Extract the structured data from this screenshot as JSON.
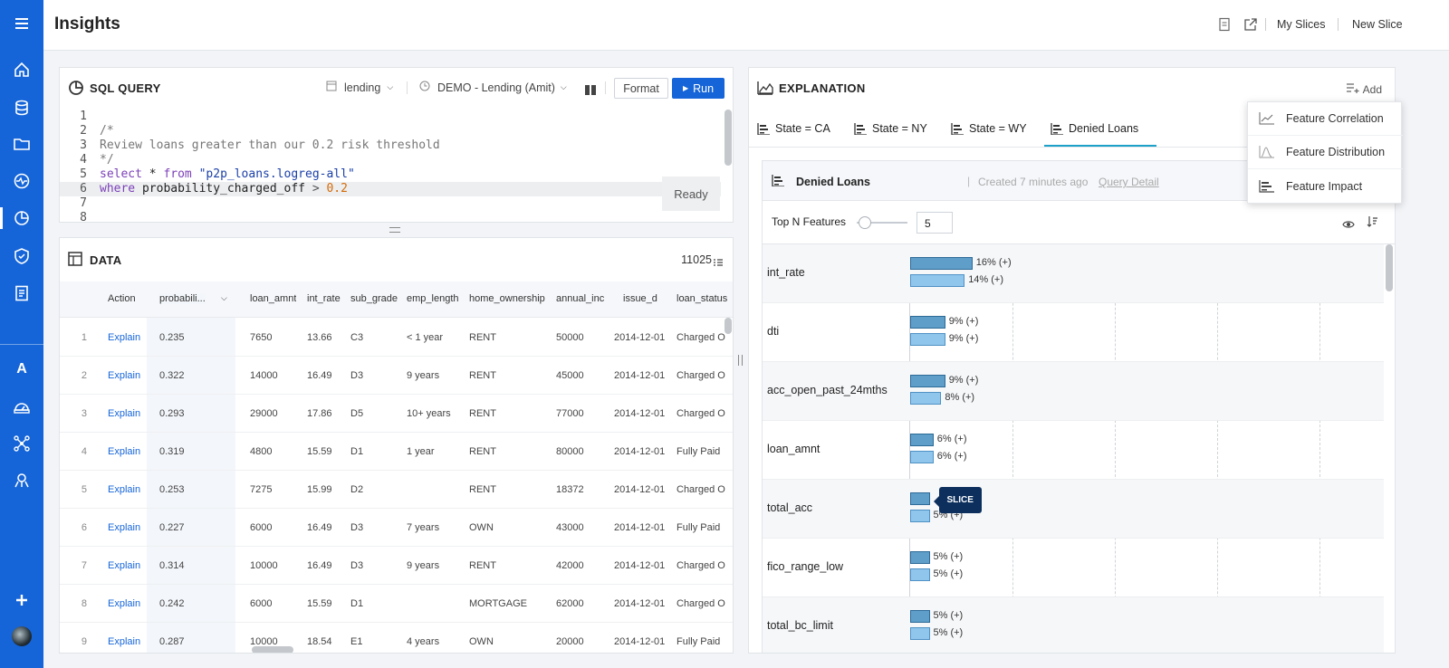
{
  "header": {
    "title": "Insights",
    "links": [
      "My Slices",
      "New Slice"
    ],
    "icons": [
      "document-icon",
      "share-icon"
    ]
  },
  "rail": {
    "items": [
      "menu-icon",
      "home-icon",
      "database-icon",
      "folder-icon",
      "pulse-icon",
      "insights-icon",
      "shield-icon",
      "report-icon",
      "letter-a-icon",
      "dashboard-icon",
      "network-icon",
      "model-icon",
      "plus-icon",
      "avatar"
    ],
    "letter": "A",
    "plus": "+"
  },
  "sql": {
    "title": "SQL QUERY",
    "database": "lending",
    "connection": "DEMO - Lending (Amit)",
    "format_label": "Format",
    "run_label": "Run",
    "status": "Ready",
    "lines": [
      "1",
      "2",
      "3",
      "4",
      "5",
      "6",
      "7",
      "8"
    ],
    "code": {
      "l2": "/*",
      "l3": "Review loans greater than our 0.2 risk threshold",
      "l4": "*/",
      "l5_kw1": "select",
      "l5_mid": " * ",
      "l5_kw2": "from",
      "l5_str": " \"p2p_loans.logreg-all\"",
      "l6_kw": "where",
      "l6_field": " probability_charged_off ",
      "l6_op": ">",
      "l6_num": " 0.2"
    }
  },
  "data": {
    "title": "DATA",
    "count": "11025",
    "columns": [
      "Action",
      "probabili...",
      "loan_amnt",
      "int_rate",
      "sub_grade",
      "emp_length",
      "home_ownership",
      "annual_inc",
      "issue_d",
      "loan_status"
    ],
    "rows": [
      [
        "1",
        "Explain",
        "0.235",
        "7650",
        "13.66",
        "C3",
        "< 1 year",
        "RENT",
        "50000",
        "2014-12-01",
        "Charged O"
      ],
      [
        "2",
        "Explain",
        "0.322",
        "14000",
        "16.49",
        "D3",
        "9 years",
        "RENT",
        "45000",
        "2014-12-01",
        "Charged O"
      ],
      [
        "3",
        "Explain",
        "0.293",
        "29000",
        "17.86",
        "D5",
        "10+ years",
        "RENT",
        "77000",
        "2014-12-01",
        "Charged O"
      ],
      [
        "4",
        "Explain",
        "0.319",
        "4800",
        "15.59",
        "D1",
        "1 year",
        "RENT",
        "80000",
        "2014-12-01",
        "Fully Paid"
      ],
      [
        "5",
        "Explain",
        "0.253",
        "7275",
        "15.99",
        "D2",
        "",
        "RENT",
        "18372",
        "2014-12-01",
        "Charged O"
      ],
      [
        "6",
        "Explain",
        "0.227",
        "6000",
        "16.49",
        "D3",
        "7 years",
        "OWN",
        "43000",
        "2014-12-01",
        "Fully Paid"
      ],
      [
        "7",
        "Explain",
        "0.314",
        "10000",
        "16.49",
        "D3",
        "9 years",
        "RENT",
        "42000",
        "2014-12-01",
        "Charged O"
      ],
      [
        "8",
        "Explain",
        "0.242",
        "6000",
        "15.59",
        "D1",
        "",
        "MORTGAGE",
        "62000",
        "2014-12-01",
        "Charged O"
      ],
      [
        "9",
        "Explain",
        "0.287",
        "10000",
        "18.54",
        "E1",
        "4 years",
        "OWN",
        "20000",
        "2014-12-01",
        "Fully Paid"
      ]
    ]
  },
  "explanation": {
    "title": "EXPLANATION",
    "add_label": "Add",
    "tabs": [
      "State = CA",
      "State = NY",
      "State = WY",
      "Denied Loans"
    ],
    "active_tab": "Denied Loans",
    "slice_title": "Denied Loans",
    "created": "Created 7 minutes ago",
    "query_detail": "Query Detail",
    "topn_label": "Top N Features",
    "topn_value": "5",
    "slice_tip": "SLICE",
    "features": [
      {
        "name": "int_rate",
        "v1": 16,
        "l1": "16% (+)",
        "v2": 14,
        "l2": "14% (+)"
      },
      {
        "name": "dti",
        "v1": 9,
        "l1": "9% (+)",
        "v2": 9,
        "l2": "9% (+)"
      },
      {
        "name": "acc_open_past_24mths",
        "v1": 9,
        "l1": "9% (+)",
        "v2": 8,
        "l2": "8% (+)"
      },
      {
        "name": "loan_amnt",
        "v1": 6,
        "l1": "6% (+)",
        "v2": 6,
        "l2": "6% (+)"
      },
      {
        "name": "total_acc",
        "v1": 5,
        "l1": "",
        "v2": 5,
        "l2": "5% (+)"
      },
      {
        "name": "fico_range_low",
        "v1": 5,
        "l1": "5% (+)",
        "v2": 5,
        "l2": "5% (+)"
      },
      {
        "name": "total_bc_limit",
        "v1": 5,
        "l1": "5% (+)",
        "v2": 5,
        "l2": "5% (+)"
      }
    ]
  },
  "dropdown": {
    "items": [
      "Feature Correlation",
      "Feature Distribution",
      "Feature Impact"
    ]
  }
}
